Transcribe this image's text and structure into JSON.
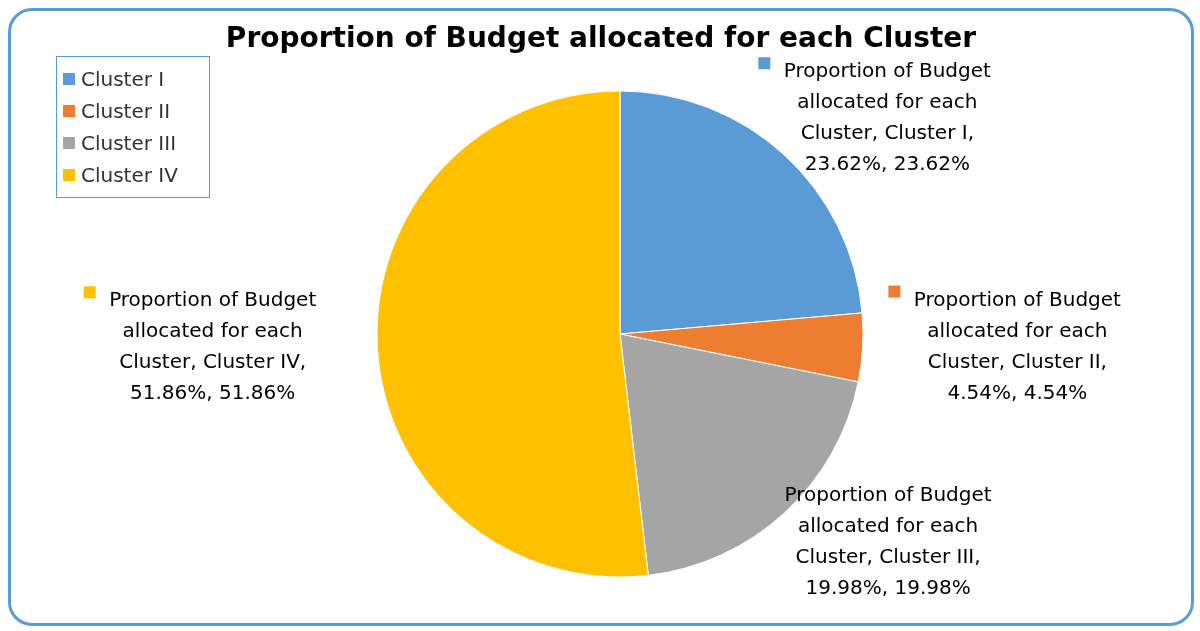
{
  "chart_data": {
    "type": "pie",
    "title": "Proportion of Budget allocated for each Cluster",
    "categories": [
      "Cluster I",
      "Cluster II",
      "Cluster III",
      "Cluster IV"
    ],
    "values": [
      23.62,
      4.54,
      19.98,
      51.86
    ],
    "colors": [
      "#5b9bd5",
      "#ed7d31",
      "#a5a5a5",
      "#ffc000"
    ],
    "value_labels": [
      "Proportion of Budget allocated for each Cluster, Cluster I, 23.62%, 23.62%",
      "Proportion of Budget allocated for each Cluster, Cluster II, 4.54%, 4.54%",
      "Proportion of Budget allocated for each Cluster, Cluster III, 19.98%, 19.98%",
      "Proportion of Budget allocated for each Cluster, Cluster IV, 51.86%, 51.86%"
    ],
    "legend": "top left"
  }
}
